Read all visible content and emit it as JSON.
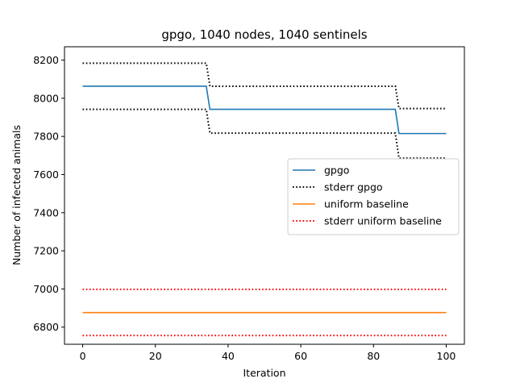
{
  "chart_data": {
    "type": "line",
    "title": "gpgo, 1040 nodes, 1040 sentinels",
    "xlabel": "Iteration",
    "ylabel": "Number of infected animals",
    "xlim": [
      -5,
      105
    ],
    "ylim": [
      6710,
      8270
    ],
    "xticks": [
      0,
      20,
      40,
      60,
      80,
      100
    ],
    "yticks": [
      6800,
      7000,
      7200,
      7400,
      7600,
      7800,
      8000,
      8200
    ],
    "grid": false,
    "legend_position": "center-right",
    "series": [
      {
        "name": "gpgo",
        "color": "#1f77b4",
        "style": "solid",
        "x": [
          0,
          34,
          35,
          86,
          87,
          100
        ],
        "y": [
          8063,
          8063,
          7942,
          7942,
          7815,
          7815
        ]
      },
      {
        "name": "stderr gpgo",
        "color": "#000000",
        "style": "dotted",
        "x": [
          0,
          34,
          35,
          86,
          87,
          100
        ],
        "y": [
          8184,
          8184,
          8063,
          8063,
          7946,
          7946
        ]
      },
      {
        "name": "",
        "color": "#000000",
        "style": "dotted",
        "x": [
          0,
          34,
          35,
          86,
          87,
          100
        ],
        "y": [
          7942,
          7942,
          7817,
          7817,
          7686,
          7686
        ]
      },
      {
        "name": "uniform baseline",
        "color": "#ff7f0e",
        "style": "solid",
        "x": [
          0,
          100
        ],
        "y": [
          6876,
          6876
        ]
      },
      {
        "name": "stderr uniform baseline",
        "color": "#ff0000",
        "style": "dotted",
        "x": [
          0,
          100
        ],
        "y": [
          6998,
          6998
        ]
      },
      {
        "name": "",
        "color": "#ff0000",
        "style": "dotted",
        "x": [
          0,
          100
        ],
        "y": [
          6756,
          6756
        ]
      }
    ]
  }
}
